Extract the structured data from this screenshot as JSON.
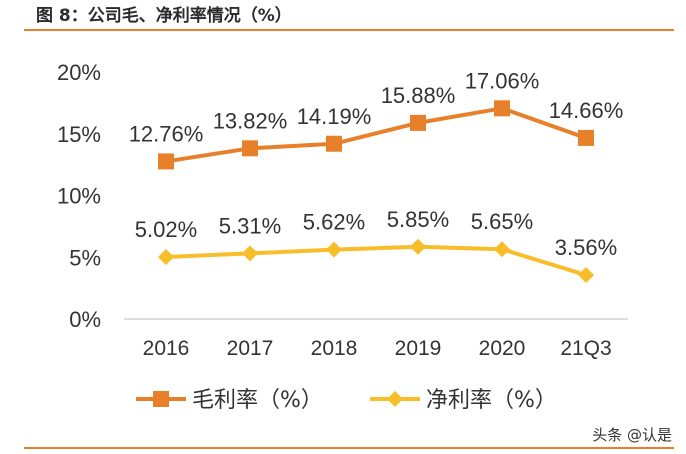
{
  "header": {
    "title": "图 8：公司毛、净利率情况（%）"
  },
  "watermark": "头条 @认是",
  "chart_data": {
    "type": "line",
    "categories": [
      "2016",
      "2017",
      "2018",
      "2019",
      "2020",
      "21Q3"
    ],
    "series": [
      {
        "name": "毛利率（%）",
        "values": [
          12.76,
          13.82,
          14.19,
          15.88,
          17.06,
          14.66
        ],
        "labels": [
          "12.76%",
          "13.82%",
          "14.19%",
          "15.88%",
          "17.06%",
          "14.66%"
        ],
        "color": "#e8802a",
        "marker": "square"
      },
      {
        "name": "净利率（%）",
        "values": [
          5.02,
          5.31,
          5.62,
          5.85,
          5.65,
          3.56
        ],
        "labels": [
          "5.02%",
          "5.31%",
          "5.62%",
          "5.85%",
          "5.65%",
          "3.56%"
        ],
        "color": "#f7be2a",
        "marker": "diamond"
      }
    ],
    "ylim": [
      0,
      20
    ],
    "yticks": [
      0,
      5,
      10,
      15,
      20
    ],
    "ytick_labels": [
      "0%",
      "5%",
      "10%",
      "15%",
      "20%"
    ],
    "grid": false,
    "legend": "bottom",
    "xlabel": "",
    "ylabel": ""
  }
}
